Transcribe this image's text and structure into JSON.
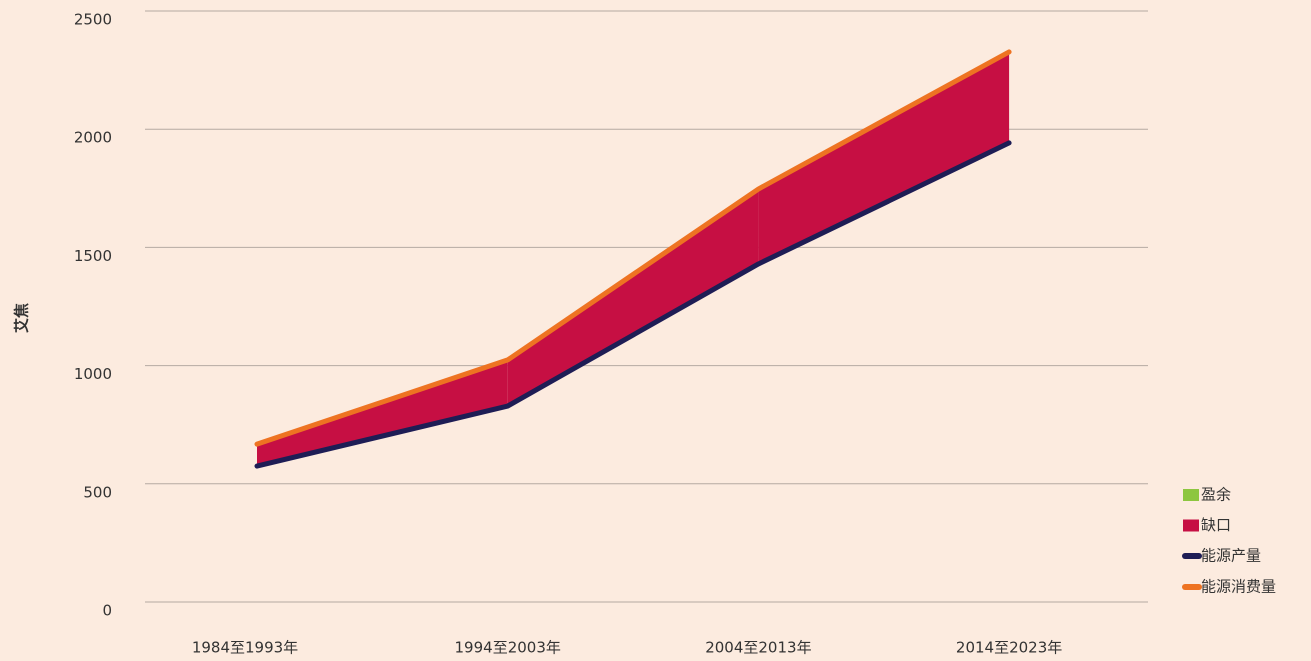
{
  "chart_data": {
    "type": "line",
    "y_label": "艾焦",
    "categories": [
      "1984至1993年",
      "1994至2003年",
      "2004至2013年",
      "2014至2023年"
    ],
    "areas": [
      {
        "name": "盈余",
        "color": "#8dc63f"
      },
      {
        "name": "缺口",
        "color": "#c60f43"
      }
    ],
    "series": [
      {
        "name": "能源产量",
        "color": "#1e1d55",
        "values": [
          575,
          829,
          1430,
          1942
        ]
      },
      {
        "name": "能源消费量",
        "color": "#ee7322",
        "values": [
          668,
          1024,
          1747,
          2327
        ]
      }
    ],
    "ylim": [
      0,
      2500
    ],
    "yticks": [
      0,
      500,
      1000,
      1500,
      2000,
      2500
    ],
    "grid": true
  }
}
